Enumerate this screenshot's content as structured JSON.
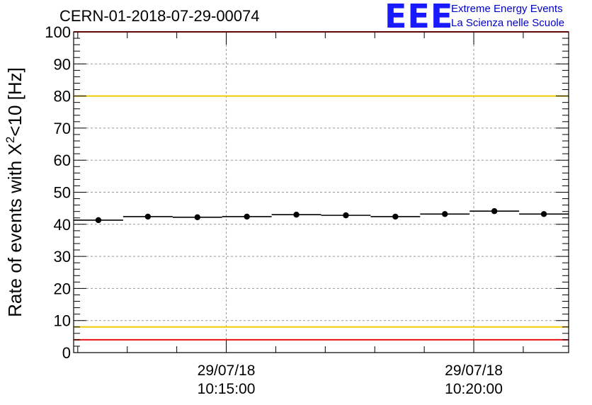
{
  "header": {
    "title": "CERN-01-2018-07-29-00074",
    "logo_text": "EEE",
    "logo_line1": "Extreme Energy Events",
    "logo_line2": "La Scienza nelle Scuole"
  },
  "chart_data": {
    "type": "scatter",
    "ylabel": "Rate of events with X²<10 [Hz]",
    "ylim": [
      0,
      100
    ],
    "yticks": [
      0,
      10,
      20,
      30,
      40,
      50,
      60,
      70,
      80,
      90,
      100
    ],
    "xlim": [
      "10:11:55",
      "10:21:55"
    ],
    "xticks": [
      {
        "time": "10:15:00",
        "date_label": "29/07/18",
        "time_label": "10:15:00"
      },
      {
        "time": "10:20:00",
        "date_label": "29/07/18",
        "time_label": "10:20:00"
      }
    ],
    "grid": true,
    "points": [
      {
        "x": "10:12:25",
        "y": 41.3,
        "x_start": "10:11:55",
        "x_end": "10:12:55"
      },
      {
        "x": "10:13:25",
        "y": 42.4,
        "x_start": "10:12:55",
        "x_end": "10:13:55"
      },
      {
        "x": "10:14:25",
        "y": 42.2,
        "x_start": "10:13:55",
        "x_end": "10:14:55"
      },
      {
        "x": "10:15:25",
        "y": 42.4,
        "x_start": "10:14:55",
        "x_end": "10:15:55"
      },
      {
        "x": "10:16:25",
        "y": 43.0,
        "x_start": "10:15:55",
        "x_end": "10:16:55"
      },
      {
        "x": "10:17:25",
        "y": 42.8,
        "x_start": "10:16:55",
        "x_end": "10:17:55"
      },
      {
        "x": "10:18:25",
        "y": 42.4,
        "x_start": "10:17:55",
        "x_end": "10:18:55"
      },
      {
        "x": "10:19:25",
        "y": 43.2,
        "x_start": "10:18:55",
        "x_end": "10:19:55"
      },
      {
        "x": "10:20:25",
        "y": 44.1,
        "x_start": "10:19:55",
        "x_end": "10:20:55"
      },
      {
        "x": "10:21:25",
        "y": 43.2,
        "x_start": "10:20:55",
        "x_end": "10:21:55"
      }
    ],
    "reference_lines": [
      {
        "y": 100,
        "color": "#ee1111"
      },
      {
        "y": 80,
        "color": "#eecc00"
      },
      {
        "y": 8,
        "color": "#eecc00"
      },
      {
        "y": 4,
        "color": "#ee1111"
      }
    ],
    "marker_color": "#000000"
  }
}
